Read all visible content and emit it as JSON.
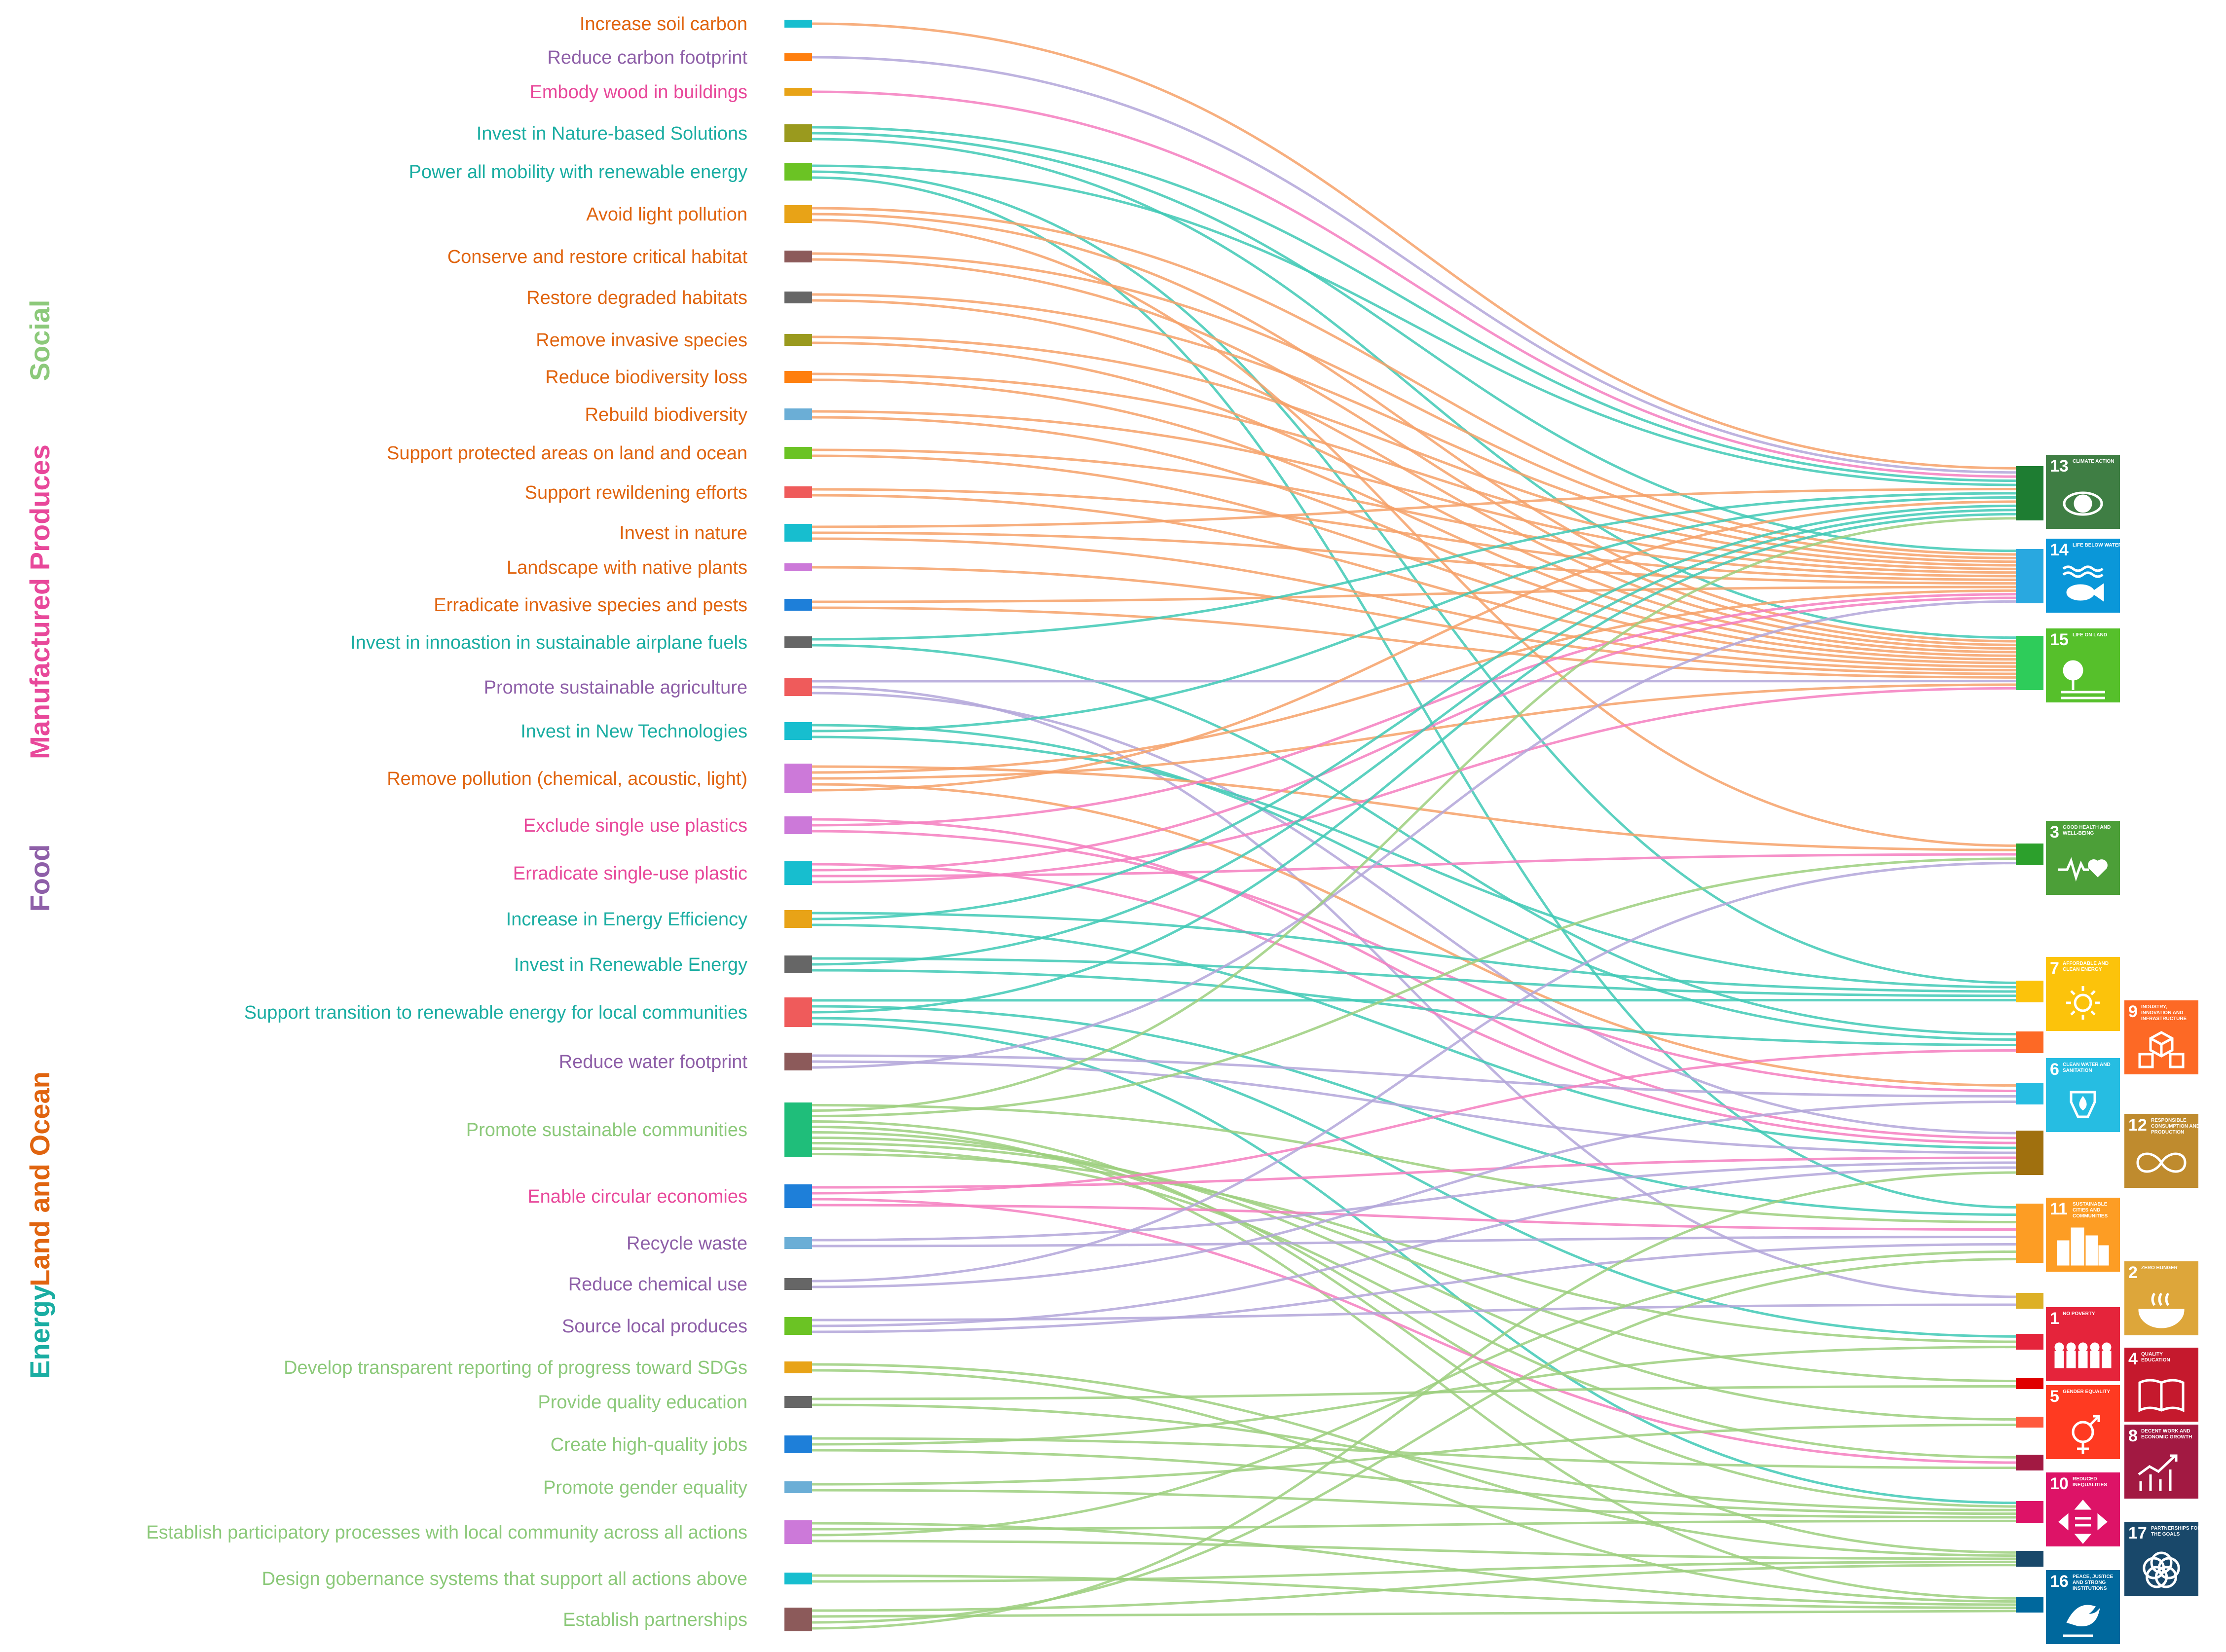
{
  "colors": {
    "land_ocean": "#e0640f",
    "energy": "#1aada2",
    "food": "#8e5fa8",
    "manufactured": "#e8489a",
    "social": "#8cc97a"
  },
  "categories": [
    {
      "key": "social",
      "label": "Social"
    },
    {
      "key": "manufactured",
      "label": "Manufactured Produces"
    },
    {
      "key": "food",
      "label": "Food"
    },
    {
      "key": "land_ocean",
      "label": "Land and Ocean"
    },
    {
      "key": "energy",
      "label": "Energy"
    }
  ],
  "actions": [
    {
      "label": "Increase soil carbon",
      "category": "land_ocean",
      "node_color": "#17becf",
      "targets": [
        13
      ]
    },
    {
      "label": "Reduce carbon footprint",
      "category": "food",
      "node_color": "#ff7f0e",
      "targets": [
        13
      ]
    },
    {
      "label": "Embody wood in buildings",
      "category": "manufactured",
      "node_color": "#e8a317",
      "targets": [
        13
      ]
    },
    {
      "label": "Invest in Nature-based Solutions",
      "category": "energy",
      "node_color": "#9a9a1e",
      "targets": [
        13,
        14,
        15
      ]
    },
    {
      "label": "Power all mobility with renewable energy",
      "category": "energy",
      "node_color": "#6bc324",
      "targets": [
        13,
        7,
        11
      ]
    },
    {
      "label": "Avoid light pollution",
      "category": "land_ocean",
      "node_color": "#e8a317",
      "targets": [
        14,
        15,
        3
      ]
    },
    {
      "label": "Conserve and restore critical habitat",
      "category": "land_ocean",
      "node_color": "#8c5a5a",
      "targets": [
        14,
        15
      ]
    },
    {
      "label": "Restore degraded habitats",
      "category": "land_ocean",
      "node_color": "#666666",
      "targets": [
        14,
        15
      ]
    },
    {
      "label": "Remove invasive species",
      "category": "land_ocean",
      "node_color": "#9a9a1e",
      "targets": [
        14,
        15
      ]
    },
    {
      "label": "Reduce biodiversity loss",
      "category": "land_ocean",
      "node_color": "#ff7f0e",
      "targets": [
        14,
        15
      ]
    },
    {
      "label": "Rebuild biodiversity",
      "category": "land_ocean",
      "node_color": "#6baed6",
      "targets": [
        14,
        15
      ]
    },
    {
      "label": "Support protected areas on land and ocean",
      "category": "land_ocean",
      "node_color": "#6bc324",
      "targets": [
        14,
        15
      ]
    },
    {
      "label": "Support rewildening efforts",
      "category": "land_ocean",
      "node_color": "#ef5b5b",
      "targets": [
        14,
        15
      ]
    },
    {
      "label": "Invest in nature",
      "category": "land_ocean",
      "node_color": "#17becf",
      "targets": [
        13,
        14,
        15
      ]
    },
    {
      "label": "Landscape with native plants",
      "category": "land_ocean",
      "node_color": "#cc79d9",
      "targets": [
        15
      ]
    },
    {
      "label": "Erradicate invasive species and pests",
      "category": "land_ocean",
      "node_color": "#1e7fd9",
      "targets": [
        14,
        15
      ]
    },
    {
      "label": "Invest in innoastion in sustainable airplane fuels",
      "category": "energy",
      "node_color": "#666666",
      "targets": [
        13,
        9
      ]
    },
    {
      "label": "Promote sustainable agriculture",
      "category": "food",
      "node_color": "#ef5b5b",
      "targets": [
        15,
        2,
        12
      ]
    },
    {
      "label": "Invest in New Technologies",
      "category": "energy",
      "node_color": "#17becf",
      "targets": [
        9,
        13,
        7
      ]
    },
    {
      "label": "Remove pollution (chemical, acoustic, light)",
      "category": "land_ocean",
      "node_color": "#cc79d9",
      "targets": [
        3,
        14,
        15,
        6,
        13
      ]
    },
    {
      "label": "Exclude single use plastics",
      "category": "manufactured",
      "node_color": "#cc79d9",
      "targets": [
        12,
        14,
        6
      ]
    },
    {
      "label": "Erradicate single-use plastic",
      "category": "manufactured",
      "node_color": "#17becf",
      "targets": [
        12,
        14,
        3,
        15
      ]
    },
    {
      "label": "Increase in Energy Efficiency",
      "category": "energy",
      "node_color": "#e8a317",
      "targets": [
        7,
        13,
        12
      ]
    },
    {
      "label": "Invest in Renewable Energy",
      "category": "energy",
      "node_color": "#666666",
      "targets": [
        7,
        13,
        9
      ]
    },
    {
      "label": "Support transition to renewable energy for local communities",
      "category": "energy",
      "node_color": "#ef5b5b",
      "targets": [
        7,
        11,
        13,
        1,
        10
      ]
    },
    {
      "label": "Reduce water footprint",
      "category": "food",
      "node_color": "#8c5a5a",
      "targets": [
        6,
        12,
        14
      ]
    },
    {
      "label": "Promote sustainable communities",
      "category": "social",
      "node_color": "#1fbe7a",
      "targets": [
        11,
        13,
        3,
        17,
        16,
        10,
        5,
        4,
        8,
        1
      ]
    },
    {
      "label": "Enable circular economies",
      "category": "manufactured",
      "node_color": "#1e7fd9",
      "targets": [
        12,
        9,
        8,
        11
      ]
    },
    {
      "label": "Recycle waste",
      "category": "food",
      "node_color": "#6baed6",
      "targets": [
        12,
        11
      ]
    },
    {
      "label": "Reduce chemical use",
      "category": "food",
      "node_color": "#666666",
      "targets": [
        3,
        6
      ]
    },
    {
      "label": "Source local produces",
      "category": "food",
      "node_color": "#6bc324",
      "targets": [
        2,
        12,
        11
      ]
    },
    {
      "label": "Develop transparent reporting of progress toward SDGs",
      "category": "social",
      "node_color": "#e8a317",
      "targets": [
        17,
        16
      ]
    },
    {
      "label": "Provide quality education",
      "category": "social",
      "node_color": "#666666",
      "targets": [
        4,
        10
      ]
    },
    {
      "label": "Create high-quality jobs",
      "category": "social",
      "node_color": "#1e7fd9",
      "targets": [
        8,
        1,
        10
      ]
    },
    {
      "label": "Promote gender equality",
      "category": "social",
      "node_color": "#6baed6",
      "targets": [
        5,
        10
      ]
    },
    {
      "label": "Establish participatory processes with local community across all actions",
      "category": "social",
      "node_color": "#cc79d9",
      "targets": [
        16,
        10,
        11,
        17
      ]
    },
    {
      "label": "Design gobernance systems that support all actions above",
      "category": "social",
      "node_color": "#17becf",
      "targets": [
        16,
        17
      ]
    },
    {
      "label": "Establish partnerships",
      "category": "social",
      "node_color": "#8c5a5a",
      "targets": [
        17,
        16,
        11,
        12
      ]
    }
  ],
  "sdgs": [
    {
      "id": 13,
      "number": "13",
      "title": "CLIMATE ACTION",
      "icon": "eye-globe-icon",
      "node_color": "#1e7d32",
      "tile_color": "#3f7e44"
    },
    {
      "id": 14,
      "number": "14",
      "title": "LIFE BELOW WATER",
      "icon": "fish-icon",
      "node_color": "#29a8e0",
      "tile_color": "#0a97d9"
    },
    {
      "id": 15,
      "number": "15",
      "title": "LIFE ON LAND",
      "icon": "tree-icon",
      "node_color": "#2ecc5a",
      "tile_color": "#56c02b"
    },
    {
      "id": 3,
      "number": "3",
      "title": "GOOD HEALTH AND WELL-BEING",
      "icon": "heartbeat-icon",
      "node_color": "#2ca02c",
      "tile_color": "#4c9f38"
    },
    {
      "id": 7,
      "number": "7",
      "title": "AFFORDABLE AND CLEAN ENERGY",
      "icon": "sun-icon",
      "node_color": "#fcc30b",
      "tile_color": "#fcc30b"
    },
    {
      "id": 9,
      "number": "9",
      "title": "INDUSTRY, INNOVATION AND INFRASTRUCTURE",
      "icon": "cubes-icon",
      "node_color": "#fd6925",
      "tile_color": "#fd6925"
    },
    {
      "id": 6,
      "number": "6",
      "title": "CLEAN WATER AND SANITATION",
      "icon": "water-drop-icon",
      "node_color": "#26bde2",
      "tile_color": "#26bde2"
    },
    {
      "id": 12,
      "number": "12",
      "title": "RESPONSIBLE CONSUMPTION AND PRODUCTION",
      "icon": "infinity-icon",
      "node_color": "#a0700e",
      "tile_color": "#bf8b2e"
    },
    {
      "id": 11,
      "number": "11",
      "title": "SUSTAINABLE CITIES AND COMMUNITIES",
      "icon": "city-icon",
      "node_color": "#fd9d24",
      "tile_color": "#fd9d24"
    },
    {
      "id": 2,
      "number": "2",
      "title": "ZERO HUNGER",
      "icon": "bowl-icon",
      "node_color": "#ddb026",
      "tile_color": "#dda63a"
    },
    {
      "id": 1,
      "number": "1",
      "title": "NO POVERTY",
      "icon": "family-icon",
      "node_color": "#e5243b",
      "tile_color": "#e5243b"
    },
    {
      "id": 4,
      "number": "4",
      "title": "QUALITY EDUCATION",
      "icon": "book-icon",
      "node_color": "#e00000",
      "tile_color": "#c5192d"
    },
    {
      "id": 5,
      "number": "5",
      "title": "GENDER EQUALITY",
      "icon": "gender-icon",
      "node_color": "#ff5a3d",
      "tile_color": "#ff3a21"
    },
    {
      "id": 8,
      "number": "8",
      "title": "DECENT WORK AND ECONOMIC GROWTH",
      "icon": "growth-chart-icon",
      "node_color": "#a21942",
      "tile_color": "#a21942"
    },
    {
      "id": 10,
      "number": "10",
      "title": "REDUCED INEQUALITIES",
      "icon": "equality-arrows-icon",
      "node_color": "#dd1367",
      "tile_color": "#dd1367"
    },
    {
      "id": 17,
      "number": "17",
      "title": "PARTNERSHIPS FOR THE GOALS",
      "icon": "rings-icon",
      "node_color": "#19486a",
      "tile_color": "#19486a"
    },
    {
      "id": 16,
      "number": "16",
      "title": "PEACE, JUSTICE AND STRONG INSTITUTIONS",
      "icon": "dove-icon",
      "node_color": "#00689d",
      "tile_color": "#00689d"
    }
  ]
}
